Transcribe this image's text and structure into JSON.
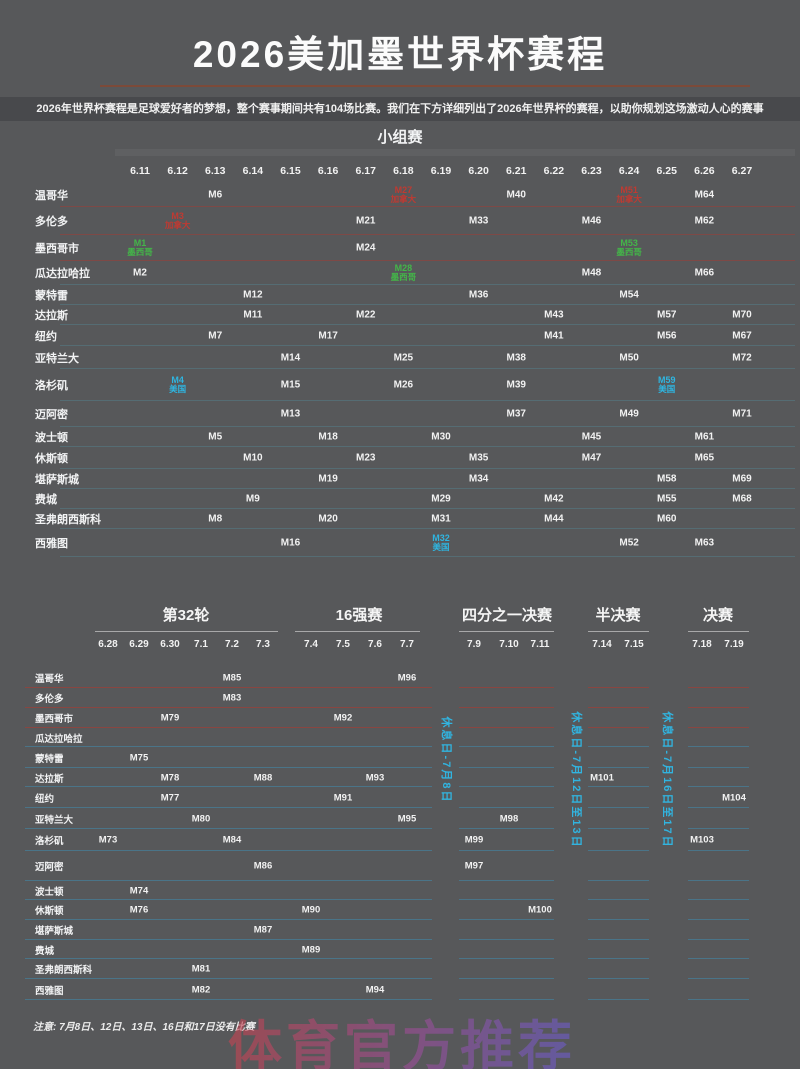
{
  "title": "2026美加墨世界杯赛程",
  "subtitle": "2026年世界杯赛程是足球爱好者的梦想，整个赛事期间共有104场比赛。我们在下方详细列出了2026年世界杯的赛程，以助你规划这场激动人心的赛事",
  "note": "注意: 7月8日、12日、13日、16日和17日没有比赛",
  "watermark": "体育官方推荐",
  "legend_colors": {
    "mexico": "#43b649",
    "usa": "#2fb5e0",
    "canada": "#bf3a32"
  },
  "chart_data": {
    "type": "table",
    "title": "2026美加墨世界杯赛程",
    "group_stage": {
      "heading": "小组赛",
      "dates": [
        "6.11",
        "6.12",
        "6.13",
        "6.14",
        "6.15",
        "6.16",
        "6.17",
        "6.18",
        "6.19",
        "6.20",
        "6.21",
        "6.22",
        "6.23",
        "6.24",
        "6.25",
        "6.26",
        "6.27"
      ],
      "rows": [
        {
          "city": "温哥华",
          "matches": [
            {
              "d": "6.13",
              "m": "M6"
            },
            {
              "d": "6.18",
              "m": "M27",
              "s": "加拿大",
              "c": "canada"
            },
            {
              "d": "6.21",
              "m": "M40"
            },
            {
              "d": "6.24",
              "m": "M51",
              "s": "加拿大",
              "c": "canada"
            },
            {
              "d": "6.26",
              "m": "M64"
            }
          ]
        },
        {
          "city": "多伦多",
          "matches": [
            {
              "d": "6.12",
              "m": "M3",
              "s": "加拿大",
              "c": "canada"
            },
            {
              "d": "6.17",
              "m": "M21"
            },
            {
              "d": "6.20",
              "m": "M33"
            },
            {
              "d": "6.23",
              "m": "M46"
            },
            {
              "d": "6.26",
              "m": "M62"
            }
          ]
        },
        {
          "city": "墨西哥市",
          "matches": [
            {
              "d": "6.11",
              "m": "M1",
              "s": "墨西哥",
              "c": "mexico"
            },
            {
              "d": "6.17",
              "m": "M24"
            },
            {
              "d": "6.24",
              "m": "M53",
              "s": "墨西哥",
              "c": "mexico"
            }
          ]
        },
        {
          "city": "瓜达拉哈拉",
          "matches": [
            {
              "d": "6.11",
              "m": "M2"
            },
            {
              "d": "6.18",
              "m": "M28",
              "s": "墨西哥",
              "c": "mexico"
            },
            {
              "d": "6.23",
              "m": "M48"
            },
            {
              "d": "6.26",
              "m": "M66"
            }
          ]
        },
        {
          "city": "蒙特雷",
          "matches": [
            {
              "d": "6.14",
              "m": "M12"
            },
            {
              "d": "6.20",
              "m": "M36"
            },
            {
              "d": "6.24",
              "m": "M54"
            }
          ]
        },
        {
          "city": "达拉斯",
          "matches": [
            {
              "d": "6.14",
              "m": "M11"
            },
            {
              "d": "6.17",
              "m": "M22"
            },
            {
              "d": "6.22",
              "m": "M43"
            },
            {
              "d": "6.25",
              "m": "M57"
            },
            {
              "d": "6.27",
              "m": "M70"
            }
          ]
        },
        {
          "city": "纽约",
          "matches": [
            {
              "d": "6.13",
              "m": "M7"
            },
            {
              "d": "6.16",
              "m": "M17"
            },
            {
              "d": "6.22",
              "m": "M41"
            },
            {
              "d": "6.25",
              "m": "M56"
            },
            {
              "d": "6.27",
              "m": "M67"
            }
          ]
        },
        {
          "city": "亚特兰大",
          "matches": [
            {
              "d": "6.15",
              "m": "M14"
            },
            {
              "d": "6.18",
              "m": "M25"
            },
            {
              "d": "6.21",
              "m": "M38"
            },
            {
              "d": "6.24",
              "m": "M50"
            },
            {
              "d": "6.27",
              "m": "M72"
            }
          ]
        },
        {
          "city": "洛杉矶",
          "matches": [
            {
              "d": "6.12",
              "m": "M4",
              "s": "美国",
              "c": "usa"
            },
            {
              "d": "6.15",
              "m": "M15"
            },
            {
              "d": "6.18",
              "m": "M26"
            },
            {
              "d": "6.21",
              "m": "M39"
            },
            {
              "d": "6.25",
              "m": "M59",
              "s": "美国",
              "c": "usa"
            }
          ]
        },
        {
          "city": "迈阿密",
          "matches": [
            {
              "d": "6.15",
              "m": "M13"
            },
            {
              "d": "6.21",
              "m": "M37"
            },
            {
              "d": "6.24",
              "m": "M49"
            },
            {
              "d": "6.27",
              "m": "M71"
            }
          ]
        },
        {
          "city": "波士顿",
          "matches": [
            {
              "d": "6.13",
              "m": "M5"
            },
            {
              "d": "6.16",
              "m": "M18"
            },
            {
              "d": "6.19",
              "m": "M30"
            },
            {
              "d": "6.23",
              "m": "M45"
            },
            {
              "d": "6.26",
              "m": "M61"
            }
          ]
        },
        {
          "city": "休斯顿",
          "matches": [
            {
              "d": "6.14",
              "m": "M10"
            },
            {
              "d": "6.17",
              "m": "M23"
            },
            {
              "d": "6.20",
              "m": "M35"
            },
            {
              "d": "6.23",
              "m": "M47"
            },
            {
              "d": "6.26",
              "m": "M65"
            }
          ]
        },
        {
          "city": "堪萨斯城",
          "matches": [
            {
              "d": "6.16",
              "m": "M19"
            },
            {
              "d": "6.20",
              "m": "M34"
            },
            {
              "d": "6.25",
              "m": "M58"
            },
            {
              "d": "6.27",
              "m": "M69"
            }
          ]
        },
        {
          "city": "费城",
          "matches": [
            {
              "d": "6.14",
              "m": "M9"
            },
            {
              "d": "6.19",
              "m": "M29"
            },
            {
              "d": "6.22",
              "m": "M42"
            },
            {
              "d": "6.25",
              "m": "M55"
            },
            {
              "d": "6.27",
              "m": "M68"
            }
          ]
        },
        {
          "city": "圣弗朗西斯科",
          "matches": [
            {
              "d": "6.13",
              "m": "M8"
            },
            {
              "d": "6.16",
              "m": "M20"
            },
            {
              "d": "6.19",
              "m": "M31"
            },
            {
              "d": "6.22",
              "m": "M44"
            },
            {
              "d": "6.25",
              "m": "M60"
            }
          ]
        },
        {
          "city": "西雅图",
          "matches": [
            {
              "d": "6.15",
              "m": "M16"
            },
            {
              "d": "6.19",
              "m": "M32",
              "s": "美国",
              "c": "usa"
            },
            {
              "d": "6.24",
              "m": "M52"
            },
            {
              "d": "6.26",
              "m": "M63"
            }
          ]
        }
      ]
    },
    "knockout": {
      "sections": [
        {
          "title": "第32轮",
          "dates": [
            "6.28",
            "6.29",
            "6.30",
            "7.1",
            "7.2",
            "7.3"
          ]
        },
        {
          "title": "16强赛",
          "dates": [
            "7.4",
            "7.5",
            "7.6",
            "7.7"
          ]
        },
        {
          "title": "四分之一决赛",
          "dates": [
            "7.9",
            "7.10",
            "7.11"
          ]
        },
        {
          "title": "半决赛",
          "dates": [
            "7.14",
            "7.15"
          ]
        },
        {
          "title": "决赛",
          "dates": [
            "7.18",
            "7.19"
          ]
        }
      ],
      "rest_days": [
        "休息日-7月8日",
        "休息日-7月12日至13日",
        "休息日-7月16日至17日"
      ],
      "rows": [
        {
          "city": "温哥华",
          "matches": [
            {
              "d": "7.2",
              "m": "M85"
            },
            {
              "d": "7.7",
              "m": "M96"
            }
          ]
        },
        {
          "city": "多伦多",
          "matches": [
            {
              "d": "7.2",
              "m": "M83"
            }
          ]
        },
        {
          "city": "墨西哥市",
          "matches": [
            {
              "d": "6.30",
              "m": "M79"
            },
            {
              "d": "7.5",
              "m": "M92"
            }
          ]
        },
        {
          "city": "瓜达拉哈拉",
          "matches": []
        },
        {
          "city": "蒙特雷",
          "matches": [
            {
              "d": "6.29",
              "m": "M75"
            }
          ]
        },
        {
          "city": "达拉斯",
          "matches": [
            {
              "d": "6.30",
              "m": "M78"
            },
            {
              "d": "7.3",
              "m": "M88"
            },
            {
              "d": "7.6",
              "m": "M93"
            },
            {
              "d": "7.14",
              "m": "M101"
            }
          ]
        },
        {
          "city": "纽约",
          "matches": [
            {
              "d": "6.30",
              "m": "M77"
            },
            {
              "d": "7.5",
              "m": "M91"
            },
            {
              "d": "7.19",
              "m": "M104"
            }
          ]
        },
        {
          "city": "亚特兰大",
          "matches": [
            {
              "d": "7.1",
              "m": "M80"
            },
            {
              "d": "7.7",
              "m": "M95"
            },
            {
              "d": "7.10",
              "m": "M98"
            }
          ]
        },
        {
          "city": "洛杉矶",
          "matches": [
            {
              "d": "6.28",
              "m": "M73"
            },
            {
              "d": "7.2",
              "m": "M84"
            },
            {
              "d": "7.9",
              "m": "M99"
            },
            {
              "d": "7.18",
              "m": "M103"
            }
          ]
        },
        {
          "city": "迈阿密",
          "matches": [
            {
              "d": "7.3",
              "m": "M86"
            },
            {
              "d": "7.9",
              "m": "M97"
            }
          ]
        },
        {
          "city": "波士顿",
          "matches": [
            {
              "d": "6.29",
              "m": "M74"
            }
          ]
        },
        {
          "city": "休斯顿",
          "matches": [
            {
              "d": "6.29",
              "m": "M76"
            },
            {
              "d": "7.4",
              "m": "M90"
            },
            {
              "d": "7.11",
              "m": "M100"
            }
          ]
        },
        {
          "city": "堪萨斯城",
          "matches": [
            {
              "d": "7.3",
              "m": "M87"
            }
          ]
        },
        {
          "city": "费城",
          "matches": [
            {
              "d": "7.4",
              "m": "M89"
            }
          ]
        },
        {
          "city": "圣弗朗西斯科",
          "matches": [
            {
              "d": "7.1",
              "m": "M81"
            }
          ]
        },
        {
          "city": "西雅图",
          "matches": [
            {
              "d": "7.1",
              "m": "M82"
            },
            {
              "d": "7.6",
              "m": "M94"
            }
          ]
        }
      ]
    }
  }
}
